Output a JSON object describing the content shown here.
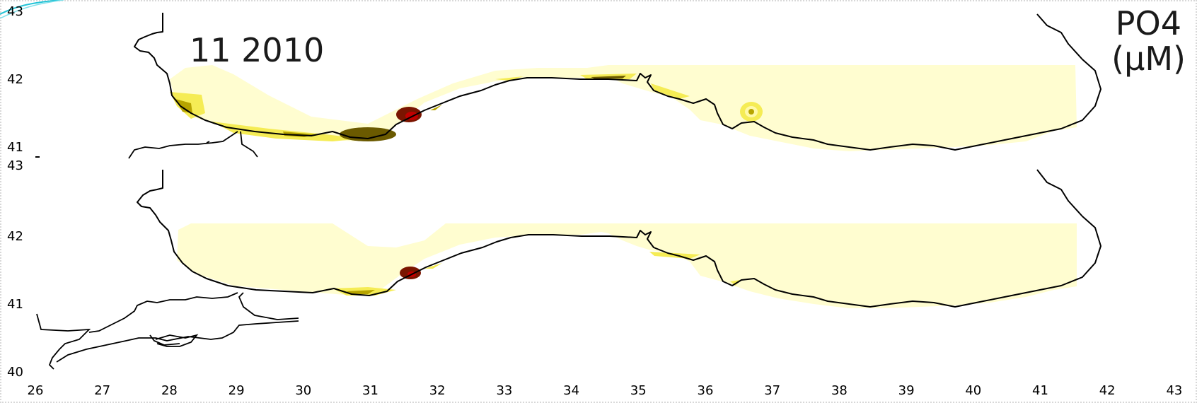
{
  "map": {
    "title": "11 2010",
    "legend_label_line1": "PO4",
    "legend_label_line2": "(μM)",
    "x_ticks": [
      "26",
      "27",
      "28",
      "29",
      "30",
      "31",
      "32",
      "33",
      "34",
      "35",
      "36",
      "37",
      "38",
      "39",
      "40",
      "41",
      "42",
      "43"
    ],
    "upper_y_ticks": [
      "43",
      "42",
      "41"
    ],
    "lower_y_ticks": [
      "43",
      "42",
      "41",
      "40"
    ],
    "colors": {
      "background_field": "#fffdd0",
      "pale_yellow": "#fff9a8",
      "yellow": "#f5ec55",
      "olive": "#b7a400",
      "dark_olive": "#6b5a00",
      "dark_red": "#7a1500",
      "red": "#c00000",
      "coastline": "#000000",
      "accent_swoosh": "#22c3d6"
    }
  }
}
